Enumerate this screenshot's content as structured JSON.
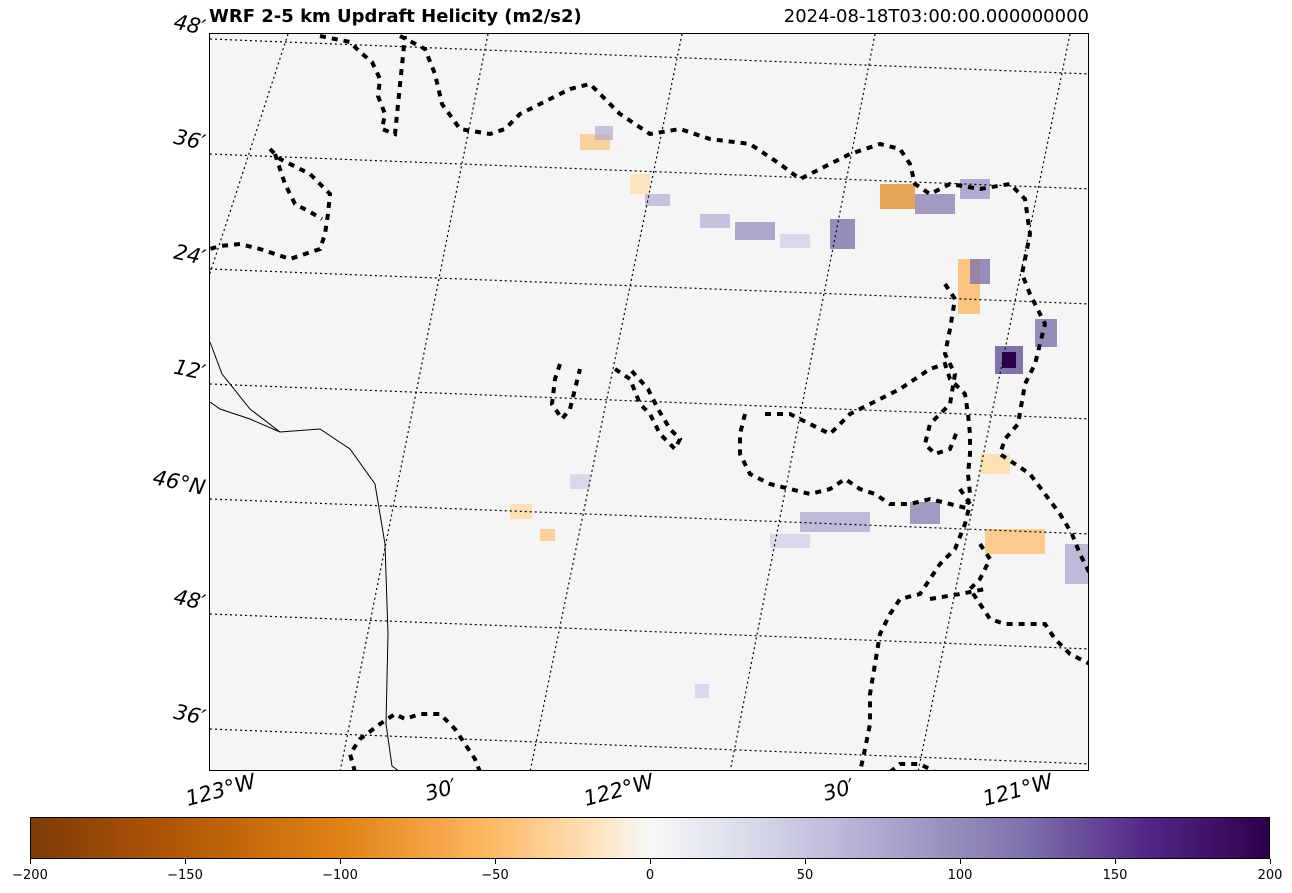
{
  "title": "WRF 2-5 km Updraft Helicity (m2/s2)",
  "timestamp": "2024-08-18T03:00:00.000000000",
  "lat_labels": [
    "48′",
    "36′",
    "24′",
    "12′",
    "46°N",
    "48′",
    "36′"
  ],
  "lon_labels": [
    "123°W",
    "30′",
    "122°W",
    "30′",
    "121°W"
  ],
  "colorbar": {
    "ticks": [
      "−200",
      "−150",
      "−100",
      "−50",
      "0",
      "50",
      "100",
      "150",
      "200"
    ],
    "min": -200,
    "max": 200,
    "colormap": "PuOr"
  },
  "colors": {
    "background": "#f5f5f5",
    "positive_strong": "#2d004b",
    "positive_mid": "#8073ac",
    "positive_weak": "#d8daeb",
    "negative_weak": "#fee0b6",
    "negative_mid": "#fdb863",
    "negative_strong": "#e08214"
  }
}
